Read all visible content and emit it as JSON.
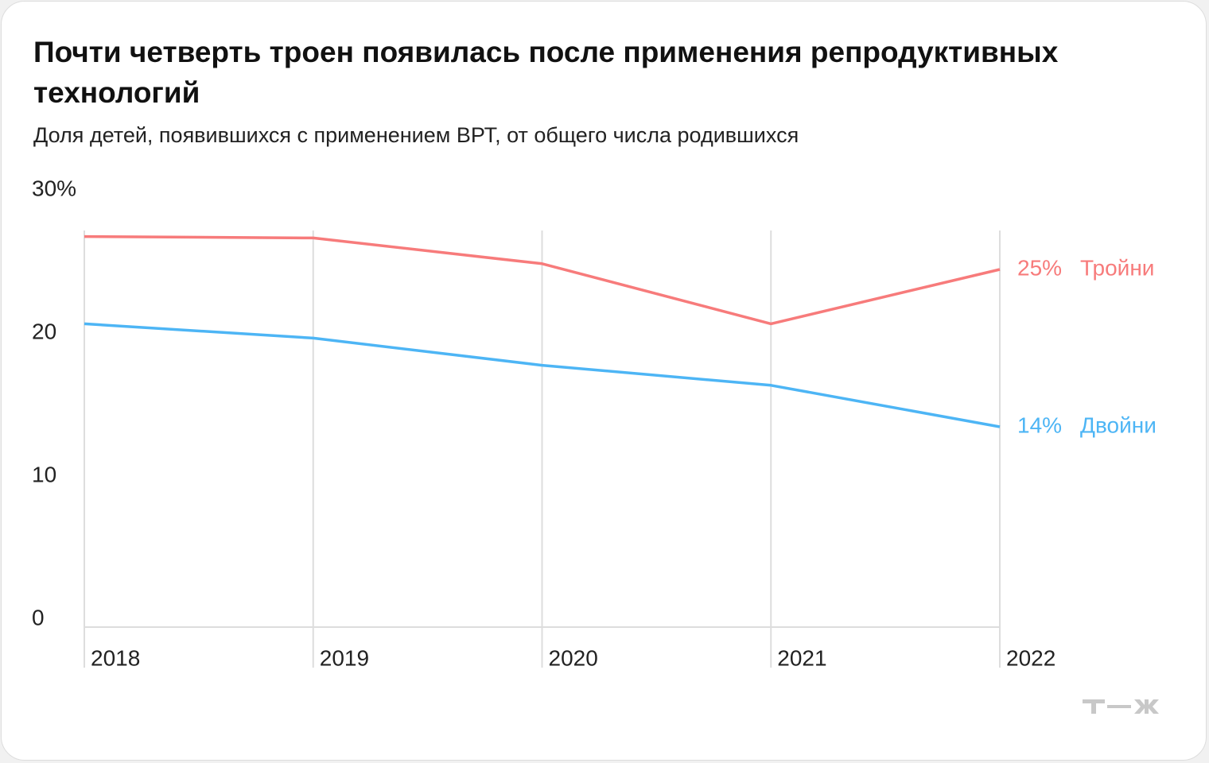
{
  "chart_data": {
    "type": "line",
    "title": "Почти четверть троен появилась после применения репродуктивных технологий",
    "subtitle": "Доля детей, появившихся с применением ВРТ, от общего числа родившихся",
    "categories": [
      "2018",
      "2019",
      "2020",
      "2021",
      "2022"
    ],
    "series": [
      {
        "name": "Тройни",
        "color": "#f77b7b",
        "values": [
          27.3,
          27.2,
          25.4,
          21.2,
          25.0
        ],
        "value_labels": [
          null,
          null,
          null,
          null,
          "25%"
        ]
      },
      {
        "name": "Двойни",
        "color": "#4db5f5",
        "values": [
          21.2,
          20.2,
          18.3,
          16.9,
          14.0
        ],
        "value_labels": [
          null,
          null,
          null,
          null,
          "14%"
        ]
      }
    ],
    "ylim": [
      0,
      30
    ],
    "yticks": [
      0,
      10,
      20,
      {
        "value": 30,
        "label": "30%"
      }
    ],
    "grid": "x"
  }
}
